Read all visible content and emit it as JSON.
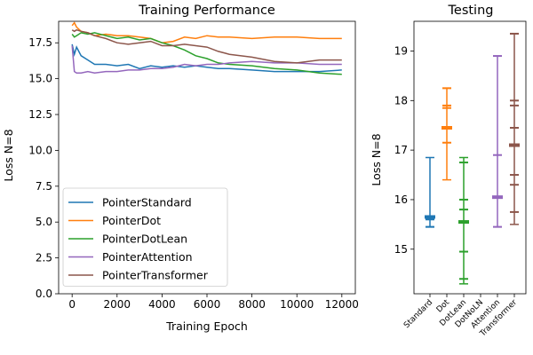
{
  "chart_data": [
    {
      "type": "line",
      "title": "Training Performance",
      "xlabel": "Training Epoch",
      "ylabel": "Loss N=8",
      "xlim": [
        -600,
        12600
      ],
      "ylim": [
        0,
        19.0
      ],
      "xticks": [
        0,
        2000,
        4000,
        6000,
        8000,
        10000,
        12000
      ],
      "xtick_labels": [
        "0",
        "2000",
        "4000",
        "6000",
        "8000",
        "10000",
        "12000"
      ],
      "yticks": [
        0,
        2.5,
        5.0,
        7.5,
        10.0,
        12.5,
        15.0,
        17.5
      ],
      "ytick_labels": [
        "0.0",
        "2.5",
        "5.0",
        "7.5",
        "10.0",
        "12.5",
        "15.0",
        "17.5"
      ],
      "grid": false,
      "legend_position": "bottom-left",
      "series": [
        {
          "name": "PointerStandard",
          "color": "#1f77b4",
          "x": [
            0,
            100,
            200,
            400,
            700,
            1000,
            1500,
            2000,
            2500,
            3000,
            3500,
            4000,
            4500,
            5000,
            5500,
            6000,
            6500,
            7000,
            8000,
            9000,
            10000,
            11000,
            12000
          ],
          "y": [
            17.4,
            16.7,
            17.2,
            16.6,
            16.3,
            16.0,
            16.0,
            15.9,
            16.0,
            15.7,
            15.9,
            15.8,
            15.9,
            15.8,
            15.9,
            15.8,
            15.7,
            15.7,
            15.6,
            15.5,
            15.5,
            15.5,
            15.6
          ]
        },
        {
          "name": "PointerDot",
          "color": "#ff7f0e",
          "x": [
            0,
            100,
            200,
            400,
            700,
            1000,
            1500,
            2000,
            2500,
            3000,
            3500,
            4000,
            4500,
            5000,
            5500,
            6000,
            6500,
            7000,
            8000,
            9000,
            10000,
            11000,
            12000
          ],
          "y": [
            18.7,
            18.9,
            18.6,
            18.3,
            18.2,
            18.0,
            18.1,
            18.0,
            18.0,
            17.9,
            17.8,
            17.5,
            17.6,
            17.9,
            17.8,
            18.0,
            17.9,
            17.9,
            17.8,
            17.9,
            17.9,
            17.8,
            17.8
          ]
        },
        {
          "name": "PointerDotLean",
          "color": "#2ca02c",
          "x": [
            0,
            100,
            200,
            400,
            700,
            1000,
            1500,
            2000,
            2500,
            3000,
            3500,
            4000,
            4500,
            5000,
            5500,
            6000,
            6500,
            7000,
            8000,
            9000,
            10000,
            11000,
            12000
          ],
          "y": [
            18.1,
            17.9,
            18.0,
            18.2,
            18.1,
            18.2,
            18.0,
            17.8,
            17.9,
            17.7,
            17.8,
            17.5,
            17.3,
            17.0,
            16.6,
            16.4,
            16.1,
            16.0,
            15.9,
            15.7,
            15.6,
            15.4,
            15.3
          ]
        },
        {
          "name": "PointerAttention",
          "color": "#9467bd",
          "x": [
            0,
            100,
            200,
            400,
            700,
            1000,
            1500,
            2000,
            2500,
            3000,
            3500,
            4000,
            4500,
            5000,
            5500,
            6000,
            6500,
            7000,
            8000,
            9000,
            10000,
            11000,
            12000
          ],
          "y": [
            17.3,
            15.5,
            15.4,
            15.4,
            15.5,
            15.4,
            15.5,
            15.5,
            15.6,
            15.6,
            15.7,
            15.7,
            15.8,
            16.0,
            15.9,
            16.0,
            16.0,
            16.1,
            16.2,
            16.1,
            16.1,
            16.0,
            16.0
          ]
        },
        {
          "name": "PointerTransformer",
          "color": "#8c564b",
          "x": [
            0,
            100,
            200,
            400,
            700,
            1000,
            1500,
            2000,
            2500,
            3000,
            3500,
            4000,
            4500,
            5000,
            5500,
            6000,
            6500,
            7000,
            8000,
            9000,
            10000,
            11000,
            12000
          ],
          "y": [
            18.4,
            18.3,
            18.4,
            18.3,
            18.2,
            18.0,
            17.8,
            17.5,
            17.4,
            17.5,
            17.6,
            17.3,
            17.3,
            17.4,
            17.3,
            17.2,
            16.9,
            16.7,
            16.5,
            16.2,
            16.1,
            16.3,
            16.3
          ]
        }
      ]
    },
    {
      "type": "errorbar",
      "title": "Testing",
      "ylabel": "Loss N=8",
      "ylim": [
        14.1,
        19.6
      ],
      "yticks": [
        15,
        16,
        17,
        18,
        19
      ],
      "ytick_labels": [
        "15",
        "16",
        "17",
        "18",
        "19"
      ],
      "categories": [
        "Standard",
        "Dot",
        "DotLean",
        "DotNoLN",
        "Attention",
        "Transformer"
      ],
      "grid": false,
      "series": [
        {
          "category": "Standard",
          "color": "#1f77b4",
          "min": 15.45,
          "max": 16.85,
          "mean": 15.65,
          "markers": [
            15.45,
            15.6,
            15.65
          ]
        },
        {
          "category": "Dot",
          "color": "#ff7f0e",
          "min": 16.4,
          "max": 18.25,
          "mean": 17.45,
          "markers": [
            17.15,
            17.45,
            17.85,
            17.9,
            18.25
          ]
        },
        {
          "category": "DotLean",
          "color": "#2ca02c",
          "min": 14.3,
          "max": 16.85,
          "mean": 15.55,
          "markers": [
            14.4,
            14.95,
            15.55,
            15.8,
            16.0,
            16.75
          ]
        },
        {
          "category": "DotNoLN",
          "color": "#d62728",
          "min": null,
          "max": null,
          "mean": null,
          "markers": []
        },
        {
          "category": "Attention",
          "color": "#9467bd",
          "min": 15.45,
          "max": 18.9,
          "mean": 16.05,
          "markers": [
            15.45,
            16.05,
            16.9,
            18.9
          ]
        },
        {
          "category": "Transformer",
          "color": "#8c564b",
          "min": 15.5,
          "max": 19.35,
          "mean": 17.1,
          "markers": [
            15.75,
            16.3,
            16.5,
            17.1,
            17.45,
            17.9,
            18.0,
            19.35
          ]
        }
      ]
    }
  ]
}
